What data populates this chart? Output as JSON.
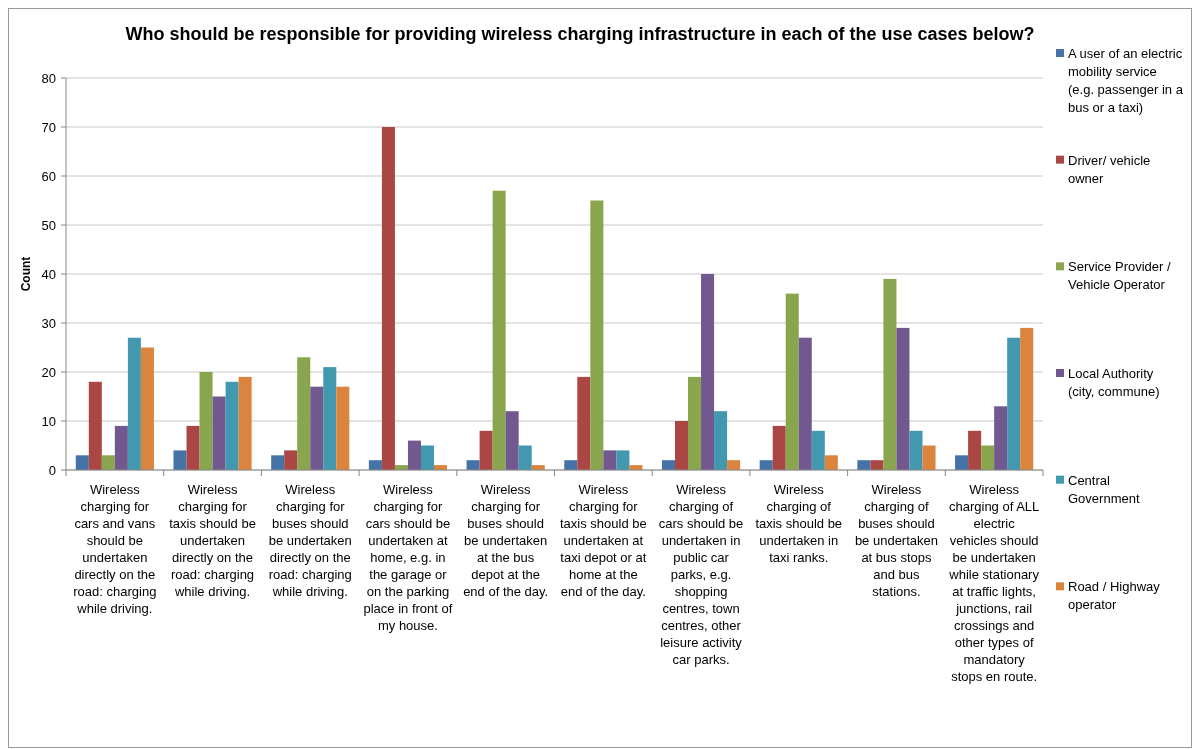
{
  "chart_data": {
    "type": "bar",
    "title": "Who should be responsible for providing wireless charging infrastructure in each of the use cases below?",
    "ylabel": "Count",
    "categories": [
      "Wireless charging for cars and vans should be undertaken directly on the road: charging while driving.",
      "Wireless charging for taxis should be undertaken directly on the road: charging while driving.",
      "Wireless charging for buses should be undertaken directly on the road: charging while driving.",
      "Wireless charging for cars should be undertaken at home, e.g. in the garage or on the parking place in front of my house.",
      "Wireless charging for buses should be undertaken at the bus depot at the end of the day.",
      "Wireless charging for taxis should be undertaken at taxi depot or at home at the end of the day.",
      "Wireless charging of cars should be undertaken in public car parks, e.g. shopping centres, town centres, other leisure activity car parks.",
      "Wireless charging of taxis should be undertaken in taxi ranks.",
      "Wireless charging of buses should be undertaken at bus stops and bus stations.",
      "Wireless charging of ALL electric vehicles should be undertaken while stationary at traffic lights, junctions, rail crossings and other types of mandatory stops en route."
    ],
    "series": [
      {
        "name": "A user of an electric mobility service (e.g. passenger in a bus or a taxi)",
        "color": "#4572a7",
        "values": [
          3,
          4,
          3,
          2,
          2,
          2,
          2,
          2,
          2,
          3
        ]
      },
      {
        "name": "Driver/ vehicle owner",
        "color": "#aa4643",
        "values": [
          18,
          9,
          4,
          70,
          8,
          19,
          10,
          9,
          2,
          8
        ]
      },
      {
        "name": "Service Provider / Vehicle Operator",
        "color": "#89a54e",
        "values": [
          3,
          20,
          23,
          1,
          57,
          55,
          19,
          36,
          39,
          5
        ]
      },
      {
        "name": "Local Authority (city, commune)",
        "color": "#71588f",
        "values": [
          9,
          15,
          17,
          6,
          12,
          4,
          40,
          27,
          29,
          13
        ]
      },
      {
        "name": "Central Government",
        "color": "#4198af",
        "values": [
          27,
          18,
          21,
          5,
          5,
          4,
          12,
          8,
          8,
          27
        ]
      },
      {
        "name": "Road / Highway operator",
        "color": "#db843d",
        "values": [
          25,
          19,
          17,
          1,
          1,
          1,
          2,
          3,
          5,
          29
        ]
      }
    ],
    "ylim": [
      0,
      80
    ],
    "yticks": [
      0,
      10,
      20,
      30,
      40,
      50,
      60,
      70,
      80
    ],
    "grid": "y",
    "legend": "right"
  }
}
